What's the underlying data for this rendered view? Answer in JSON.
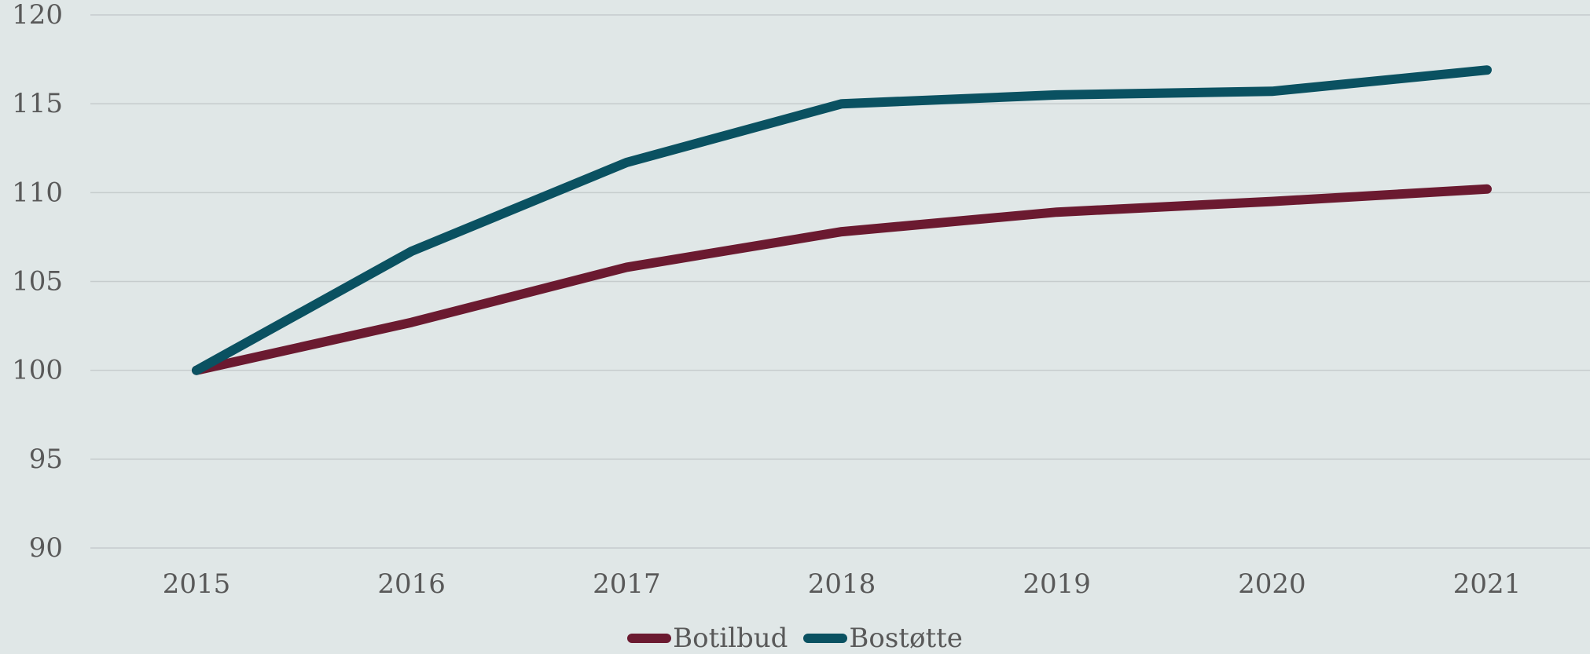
{
  "chart_data": {
    "type": "line",
    "title": "",
    "xlabel": "",
    "ylabel": "",
    "categories": [
      "2015",
      "2016",
      "2017",
      "2018",
      "2019",
      "2020",
      "2021"
    ],
    "ylim": [
      90,
      120
    ],
    "yticks": [
      "90",
      "95",
      "100",
      "105",
      "110",
      "115",
      "120"
    ],
    "grid": true,
    "legend_position": "bottom",
    "series": [
      {
        "name": "Botilbud",
        "color": "#6b1a30",
        "values": [
          100,
          102.7,
          105.8,
          107.8,
          108.9,
          109.5,
          110.2
        ]
      },
      {
        "name": "Bostøtte",
        "color": "#0a5161",
        "values": [
          100,
          106.7,
          111.7,
          115.0,
          115.5,
          115.7,
          116.9
        ]
      }
    ]
  }
}
